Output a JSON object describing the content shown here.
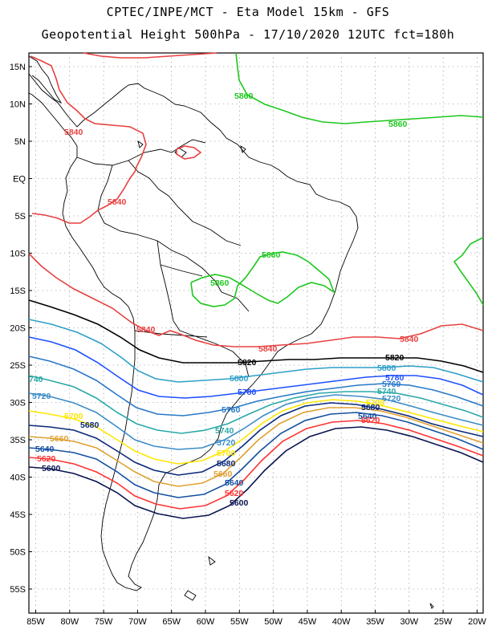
{
  "header": {
    "line1": "CPTEC/INPE/MCT -  Eta Model 15km - GFS",
    "line2": "Geopotential Height 500hPa - 17/10/2020 12UTC fct=180h"
  },
  "axes": {
    "lat_labels": [
      "15N",
      "10N",
      "5N",
      "EQ",
      "5S",
      "10S",
      "15S",
      "20S",
      "25S",
      "30S",
      "35S",
      "40S",
      "45S",
      "50S",
      "55S"
    ],
    "lon_labels": [
      "85W",
      "80W",
      "75W",
      "70W",
      "65W",
      "60W",
      "55W",
      "50W",
      "45W",
      "40W",
      "35W",
      "30W",
      "25W",
      "20W"
    ],
    "grid": "dotted"
  },
  "colors": {
    "c5860": "#1ec81e",
    "c5840": "#e84040",
    "c5820": "#000000",
    "c5800": "#2d9fc8",
    "c5780": "#1e50ff",
    "c5760": "#2878c8",
    "c5740": "#2aa8a8",
    "c5720": "#3c8cc8",
    "c5700": "#ffe600",
    "c5680": "#0a2878",
    "c5660": "#e0a030",
    "c5640": "#1450a0",
    "c5620": "#ff3232",
    "c5600": "#0a1450",
    "coast": "#000000"
  },
  "contour_labels": {
    "l5860": "5860",
    "l5840": "5840",
    "l5820": "5820",
    "l5800": "5800",
    "l5780": "5780",
    "l5760": "5760",
    "l5740": "5740",
    "l5740_cut": "740",
    "l5720": "5720",
    "l5700": "5700",
    "l5680": "5680",
    "l5660": "5660",
    "l5640": "5640",
    "l5620": "5620",
    "l5600": "5600"
  }
}
